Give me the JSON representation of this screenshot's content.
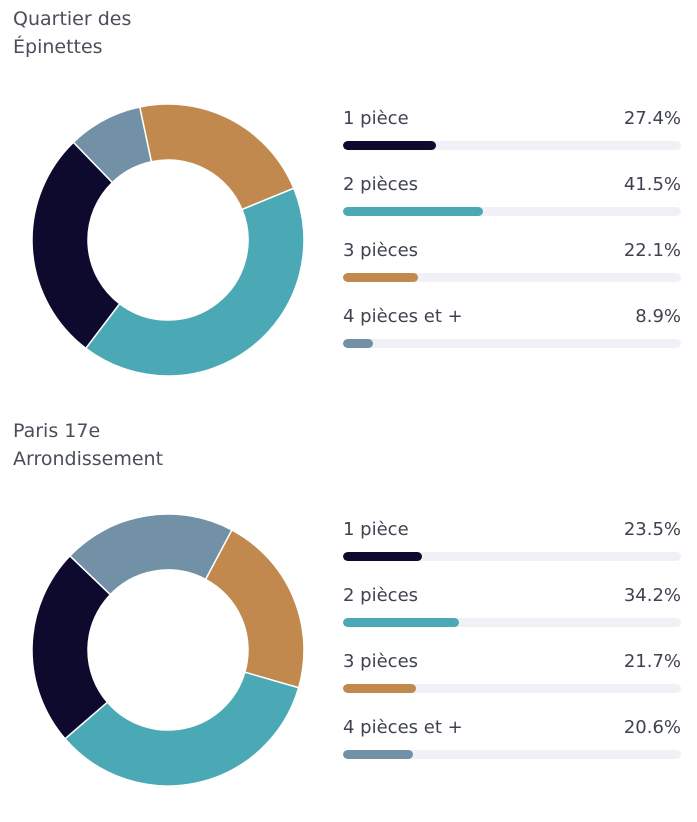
{
  "chart_data": [
    {
      "type": "pie",
      "title": "Quartier des Épinettes",
      "categories": [
        "1 pièce",
        "2 pièces",
        "3 pièces",
        "4 pièces et +"
      ],
      "values": [
        27.4,
        41.5,
        22.1,
        8.9
      ],
      "value_labels": [
        "27.4%",
        "41.5%",
        "22.1%",
        "8.9%"
      ],
      "colors": [
        "#0d0a2e",
        "#4aa9b5",
        "#c2894f",
        "#7290a6"
      ]
    },
    {
      "type": "pie",
      "title": "Paris 17e Arrondissement",
      "categories": [
        "1 pièce",
        "2 pièces",
        "3 pièces",
        "4 pièces et +"
      ],
      "values": [
        23.5,
        34.2,
        21.7,
        20.6
      ],
      "value_labels": [
        "23.5%",
        "34.2%",
        "21.7%",
        "20.6%"
      ],
      "colors": [
        "#0d0a2e",
        "#4aa9b5",
        "#c2894f",
        "#7290a6"
      ]
    }
  ]
}
